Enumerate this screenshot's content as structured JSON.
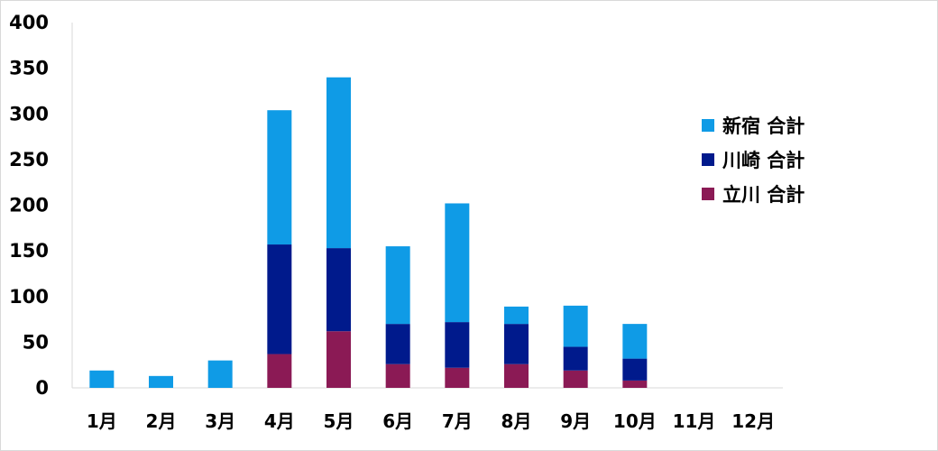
{
  "chart_data": {
    "type": "bar",
    "stacked": true,
    "title": "",
    "xlabel": "",
    "ylabel": "",
    "categories": [
      "1月",
      "2月",
      "3月",
      "4月",
      "5月",
      "6月",
      "7月",
      "8月",
      "9月",
      "10月",
      "11月",
      "12月"
    ],
    "ylim": [
      0,
      400
    ],
    "yticks": [
      0,
      50,
      100,
      150,
      200,
      250,
      300,
      350,
      400
    ],
    "grid": false,
    "legend_position": "right",
    "series": [
      {
        "name": "立川 合計",
        "color": "#8b1a55",
        "values": [
          0,
          0,
          0,
          37,
          62,
          26,
          22,
          26,
          19,
          8,
          0,
          0
        ]
      },
      {
        "name": "川崎 合計",
        "color": "#001a8c",
        "values": [
          0,
          0,
          0,
          120,
          91,
          44,
          50,
          44,
          26,
          24,
          0,
          0
        ]
      },
      {
        "name": "新宿 合計",
        "color": "#0f9be6",
        "values": [
          19,
          13,
          30,
          147,
          187,
          85,
          130,
          19,
          45,
          38,
          0,
          0
        ]
      }
    ],
    "legend_order": [
      "新宿 合計",
      "川崎 合計",
      "立川 合計"
    ]
  }
}
